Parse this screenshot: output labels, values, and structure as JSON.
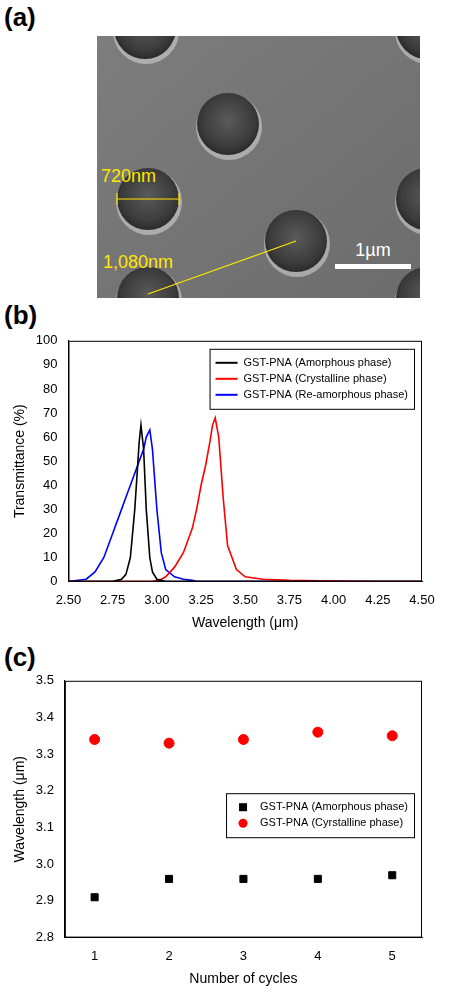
{
  "sem_image": {
    "panel": "(a)",
    "annotations": [
      "720nm",
      "1,080nm"
    ],
    "scale_bar": "1µm"
  },
  "chart_data": [
    {
      "panel": "(b)",
      "type": "line",
      "x_label": "Wavelength (μm)",
      "y_label": "Transmittance (%)",
      "x": [
        2.5,
        2.6,
        2.65,
        2.7,
        2.725,
        2.75,
        2.775,
        2.8,
        2.825,
        2.85,
        2.875,
        2.9,
        2.91,
        2.925,
        2.94,
        2.96,
        2.975,
        3.0,
        3.025,
        3.05,
        3.1,
        3.15,
        3.2,
        3.225,
        3.25,
        3.275,
        3.3,
        3.315,
        3.33,
        3.35,
        3.375,
        3.4,
        3.45,
        3.5,
        3.6,
        3.75,
        4.0,
        4.25,
        4.5
      ],
      "xlim": [
        2.5,
        4.5
      ],
      "xticks": [
        {
          "value": 2.5,
          "label": "2.50"
        },
        {
          "value": 2.75,
          "label": "2.75"
        },
        {
          "value": 3,
          "label": "3.00"
        },
        {
          "value": 3.25,
          "label": "3.25"
        },
        {
          "value": 3.5,
          "label": "3.50"
        },
        {
          "value": 3.75,
          "label": "3.75"
        },
        {
          "value": 4,
          "label": "4.00"
        },
        {
          "value": 4.25,
          "label": "4.25"
        },
        {
          "value": 4.5,
          "label": "4.50"
        }
      ],
      "ylim": [
        0,
        100
      ],
      "yticks": [
        0,
        10,
        20,
        30,
        40,
        50,
        60,
        70,
        80,
        90,
        100
      ],
      "grid": false,
      "legend": "upper right",
      "series": [
        {
          "name": "GST-PNA (Amorphous phase)",
          "color": "#000000",
          "line_style": "solid",
          "values": [
            0,
            0,
            0,
            0,
            0,
            0,
            0.5,
            1,
            3,
            10,
            30,
            58,
            65,
            55,
            30,
            10,
            4,
            1,
            0.5,
            0,
            0,
            0,
            0,
            0,
            0,
            0,
            0,
            0,
            0,
            0,
            0,
            0,
            0,
            0,
            0,
            0,
            0,
            0,
            0
          ]
        },
        {
          "name": "GST-PNA (Crystalline phase)",
          "color": "#ff0000",
          "line_style": "solid",
          "values": [
            0,
            0,
            0,
            0,
            0,
            0,
            0,
            0,
            0,
            0,
            0,
            0,
            0,
            0,
            0,
            0,
            0,
            0.5,
            1,
            2,
            6,
            12,
            22,
            30,
            40,
            48,
            58,
            65,
            68,
            60,
            35,
            15,
            5,
            2,
            1,
            0.5,
            0.2,
            0,
            0
          ]
        },
        {
          "name": "GST-PNA (Re-amorphous phase)",
          "color": "#0000ff",
          "line_style": "solid",
          "values": [
            0,
            1,
            4,
            10,
            15,
            20,
            25,
            30,
            35,
            40,
            45,
            50,
            52,
            55,
            60,
            63,
            55,
            30,
            12,
            5,
            2,
            1,
            0.5,
            0,
            0,
            0,
            0,
            0,
            0,
            0,
            0,
            0,
            0,
            0,
            0,
            0,
            0,
            0,
            0
          ]
        }
      ]
    },
    {
      "panel": "(c)",
      "type": "scatter",
      "x_label": "Number of cycles",
      "y_label": "Wavelength (μm)",
      "x": [
        1,
        2,
        3,
        4,
        5
      ],
      "xlim": [
        0.6,
        5.4
      ],
      "xticks": [
        1,
        2,
        3,
        4,
        5
      ],
      "ylim": [
        2.8,
        3.5
      ],
      "yticks": [
        2.8,
        2.9,
        {
          "value": 3,
          "label": "3.0"
        },
        3.1,
        3.2,
        3.3,
        3.4,
        3.5
      ],
      "grid": false,
      "legend": "center right",
      "series": [
        {
          "name": "GST-PNA (Amorphous phase)",
          "color": "#000000",
          "marker": "square",
          "values": [
            2.91,
            2.96,
            2.96,
            2.96,
            2.97
          ]
        },
        {
          "name": "GST-PNA (Cyrstalline phase)",
          "color": "#ff0000",
          "marker": "circle",
          "values": [
            3.34,
            3.33,
            3.34,
            3.36,
            3.35
          ]
        }
      ]
    }
  ]
}
